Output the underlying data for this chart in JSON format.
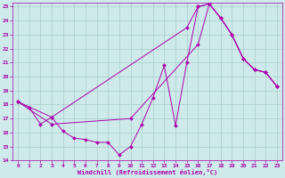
{
  "xlabel": "Windchill (Refroidissement éolien,°C)",
  "bg_color": "#ceeaea",
  "line_color": "#aa00aa",
  "grid_color": "#aacccc",
  "xlim": [
    -0.5,
    23.5
  ],
  "ylim": [
    14,
    25.3
  ],
  "yticks": [
    14,
    15,
    16,
    17,
    18,
    19,
    20,
    21,
    22,
    23,
    24,
    25
  ],
  "xticks": [
    0,
    1,
    2,
    3,
    4,
    5,
    6,
    7,
    8,
    9,
    10,
    11,
    12,
    13,
    14,
    15,
    16,
    17,
    18,
    19,
    20,
    21,
    22,
    23
  ],
  "series": [
    {
      "x": [
        0,
        1,
        2,
        3,
        4,
        5,
        6,
        7,
        8,
        9,
        10,
        11,
        12,
        13,
        14,
        15,
        16,
        17,
        18,
        19,
        20,
        21,
        22,
        23
      ],
      "y": [
        18.2,
        17.8,
        16.6,
        17.1,
        16.1,
        15.6,
        15.5,
        15.3,
        15.3,
        14.4,
        15.0,
        16.6,
        18.5,
        20.8,
        16.5,
        21.0,
        25.0,
        25.2,
        24.2,
        23.0,
        21.3,
        20.5,
        20.3,
        19.3
      ]
    },
    {
      "x": [
        0,
        3,
        15,
        16,
        17,
        18,
        19,
        20,
        21,
        22,
        23
      ],
      "y": [
        18.2,
        17.1,
        23.5,
        25.0,
        25.2,
        24.2,
        23.0,
        21.3,
        20.5,
        20.3,
        19.3
      ]
    },
    {
      "x": [
        0,
        3,
        10,
        16,
        17,
        18,
        19,
        20,
        21,
        22,
        23
      ],
      "y": [
        18.2,
        16.6,
        17.0,
        22.3,
        25.2,
        24.2,
        23.0,
        21.3,
        20.5,
        20.3,
        19.3
      ]
    }
  ]
}
